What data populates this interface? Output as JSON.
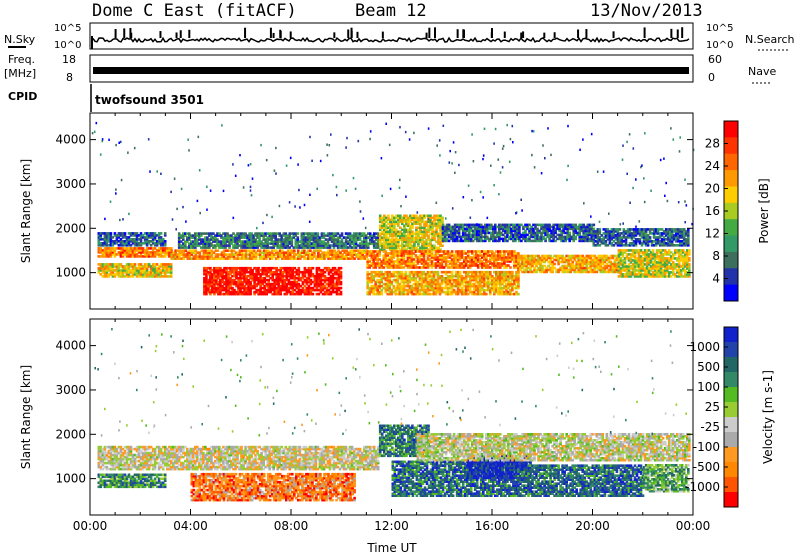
{
  "header": {
    "station": "Dome C East (fitACF)",
    "beam": "Beam 12",
    "date": "13/Nov/2013"
  },
  "summary_panels": {
    "nsky_label": "N.Sky",
    "nsky_top": "10^5",
    "nsky_bottom": "10^0",
    "nsearch_label": "N.Search",
    "nsearch_top": "10^5",
    "nsearch_bottom": "10^0",
    "freq_label_1": "Freq.",
    "freq_label_2": "[MHz]",
    "freq_top": "18",
    "freq_bottom": "8",
    "nave_label": "Nave",
    "nave_top": "60",
    "nave_bottom": "0",
    "cpid_label": "CPID",
    "cpid_value": "twofsound 3501"
  },
  "chart_data": [
    {
      "type": "heatmap",
      "parameter": "power",
      "ylabel": "Slant Range [km]",
      "yticks": [
        1000,
        2000,
        3000,
        4000
      ],
      "ylim": [
        180,
        4600
      ],
      "xlim": [
        0,
        24
      ],
      "colorbar": {
        "label": "Power [dB]",
        "ticks": [
          "28",
          "24",
          "20",
          "16",
          "12",
          "8",
          "4"
        ],
        "colors": [
          "#0000ff",
          "#2233aa",
          "#3c6f5e",
          "#339966",
          "#44aa44",
          "#aacc22",
          "#ffcc00",
          "#ff9900",
          "#ff6600",
          "#ff3300",
          "#ff0000"
        ]
      },
      "bands": [
        {
          "t0": 0.3,
          "t1": 3.2,
          "r0": 1350,
          "r1": 1550,
          "level": 0.75
        },
        {
          "t0": 0.3,
          "t1": 3.2,
          "r0": 900,
          "r1": 1200,
          "level": 0.6
        },
        {
          "t0": 0.3,
          "t1": 3.0,
          "r0": 1600,
          "r1": 1900,
          "level": 0.2
        },
        {
          "t0": 3.2,
          "t1": 11.0,
          "r0": 1300,
          "r1": 1500,
          "level": 0.7
        },
        {
          "t0": 4.5,
          "t1": 10.0,
          "r0": 500,
          "r1": 1100,
          "level": 0.95
        },
        {
          "t0": 3.5,
          "t1": 11.5,
          "r0": 1550,
          "r1": 1900,
          "level": 0.25
        },
        {
          "t0": 11.5,
          "t1": 14.0,
          "r0": 1500,
          "r1": 2300,
          "level": 0.55
        },
        {
          "t0": 11.0,
          "t1": 17.0,
          "r0": 1100,
          "r1": 1500,
          "level": 0.75
        },
        {
          "t0": 11.0,
          "t1": 17.0,
          "r0": 500,
          "r1": 1000,
          "level": 0.65
        },
        {
          "t0": 14.0,
          "t1": 20.0,
          "r0": 1700,
          "r1": 2100,
          "level": 0.2
        },
        {
          "t0": 17.0,
          "t1": 21.0,
          "r0": 1000,
          "r1": 1400,
          "level": 0.65
        },
        {
          "t0": 21.0,
          "t1": 23.8,
          "r0": 900,
          "r1": 1500,
          "level": 0.55
        },
        {
          "t0": 20.0,
          "t1": 23.8,
          "r0": 1600,
          "r1": 2000,
          "level": 0.2
        }
      ]
    },
    {
      "type": "heatmap",
      "parameter": "velocity",
      "ylabel": "Slant Range [km]",
      "yticks": [
        1000,
        2000,
        3000,
        4000
      ],
      "ylim": [
        180,
        4600
      ],
      "xlim": [
        0,
        24
      ],
      "xticks": [
        "00:00",
        "04:00",
        "08:00",
        "12:00",
        "16:00",
        "20:00",
        "00:00"
      ],
      "xlabel": "Time UT",
      "colorbar": {
        "label": "Velocity [m s-1]",
        "ticks": [
          "1000",
          "500",
          "100",
          "25",
          "-25",
          "-100",
          "-500",
          "-1000"
        ],
        "colors": [
          "#ff0000",
          "#ff5500",
          "#ff8800",
          "#ff9922",
          "#aaaaaa",
          "#cccccc",
          "#99cc33",
          "#55bb22",
          "#338866",
          "#226666",
          "#2244aa",
          "#1122cc"
        ]
      },
      "bands": [
        {
          "t0": 0.3,
          "t1": 11.5,
          "r0": 1200,
          "r1": 1700,
          "level": 0.42
        },
        {
          "t0": 0.3,
          "t1": 3.0,
          "r0": 800,
          "r1": 1100,
          "level": 0.7
        },
        {
          "t0": 4.0,
          "t1": 10.5,
          "r0": 500,
          "r1": 1100,
          "level": 0.2
        },
        {
          "t0": 11.5,
          "t1": 13.5,
          "r0": 1500,
          "r1": 2200,
          "level": 0.75
        },
        {
          "t0": 12.0,
          "t1": 17.0,
          "r0": 600,
          "r1": 1400,
          "level": 0.8
        },
        {
          "t0": 15.0,
          "t1": 17.5,
          "r0": 1000,
          "r1": 1500,
          "level": 0.95
        },
        {
          "t0": 17.0,
          "t1": 22.0,
          "r0": 600,
          "r1": 1300,
          "level": 0.8
        },
        {
          "t0": 13.0,
          "t1": 23.8,
          "r0": 1400,
          "r1": 2000,
          "level": 0.45
        },
        {
          "t0": 22.0,
          "t1": 23.8,
          "r0": 700,
          "r1": 1300,
          "level": 0.65
        }
      ]
    }
  ]
}
